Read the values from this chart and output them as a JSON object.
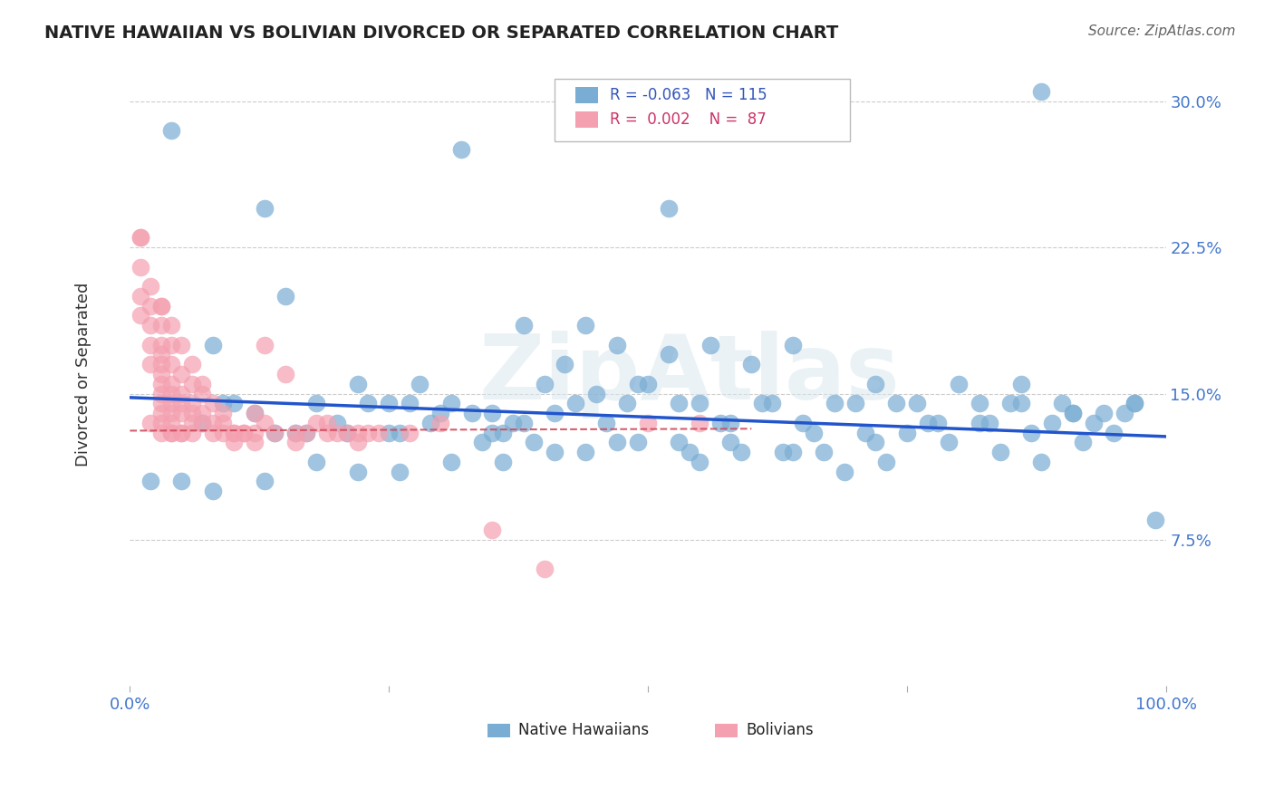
{
  "title": "NATIVE HAWAIIAN VS BOLIVIAN DIVORCED OR SEPARATED CORRELATION CHART",
  "source": "Source: ZipAtlas.com",
  "ylabel": "Divorced or Separated",
  "watermark": "ZipAtlas",
  "xlim": [
    0.0,
    1.0
  ],
  "ylim": [
    0.0,
    0.32
  ],
  "ytick_labels": [
    "7.5%",
    "15.0%",
    "22.5%",
    "30.0%"
  ],
  "ytick_vals": [
    0.075,
    0.15,
    0.225,
    0.3
  ],
  "gridline_color": "#cccccc",
  "blue_color": "#7aadd4",
  "pink_color": "#f4a0b0",
  "blue_line_color": "#2255cc",
  "pink_line_color": "#cc4455",
  "legend_R_blue": "-0.063",
  "legend_N_blue": "115",
  "legend_R_pink": "0.002",
  "legend_N_pink": "87",
  "legend_label_blue": "Native Hawaiians",
  "legend_label_pink": "Bolivians",
  "blue_scatter_x": [
    0.04,
    0.13,
    0.32,
    0.52,
    0.88,
    0.15,
    0.08,
    0.44,
    0.38,
    0.42,
    0.47,
    0.52,
    0.56,
    0.6,
    0.64,
    0.45,
    0.49,
    0.53,
    0.68,
    0.72,
    0.76,
    0.8,
    0.86,
    0.9,
    0.93,
    0.96,
    0.22,
    0.25,
    0.28,
    0.31,
    0.35,
    0.55,
    0.58,
    0.62,
    0.5,
    0.48,
    0.43,
    0.38,
    0.35,
    0.3,
    0.25,
    0.2,
    0.17,
    0.14,
    0.1,
    0.07,
    0.65,
    0.7,
    0.74,
    0.77,
    0.82,
    0.85,
    0.89,
    0.91,
    0.94,
    0.97,
    0.99,
    0.12,
    0.18,
    0.23,
    0.27,
    0.33,
    0.37,
    0.41,
    0.46,
    0.57,
    0.61,
    0.66,
    0.71,
    0.75,
    0.78,
    0.83,
    0.87,
    0.92,
    0.95,
    0.4,
    0.36,
    0.53,
    0.58,
    0.63,
    0.67,
    0.72,
    0.79,
    0.84,
    0.88,
    0.09,
    0.16,
    0.21,
    0.26,
    0.29,
    0.34,
    0.39,
    0.44,
    0.49,
    0.54,
    0.59,
    0.64,
    0.69,
    0.73,
    0.82,
    0.86,
    0.91,
    0.55,
    0.47,
    0.41,
    0.36,
    0.31,
    0.26,
    0.22,
    0.18,
    0.13,
    0.08,
    0.05,
    0.02,
    0.97
  ],
  "blue_scatter_y": [
    0.285,
    0.245,
    0.275,
    0.245,
    0.305,
    0.2,
    0.175,
    0.185,
    0.185,
    0.165,
    0.175,
    0.17,
    0.175,
    0.165,
    0.175,
    0.15,
    0.155,
    0.145,
    0.145,
    0.155,
    0.145,
    0.155,
    0.155,
    0.145,
    0.135,
    0.14,
    0.155,
    0.145,
    0.155,
    0.145,
    0.14,
    0.145,
    0.135,
    0.145,
    0.155,
    0.145,
    0.145,
    0.135,
    0.13,
    0.14,
    0.13,
    0.135,
    0.13,
    0.13,
    0.145,
    0.135,
    0.135,
    0.145,
    0.145,
    0.135,
    0.135,
    0.145,
    0.135,
    0.14,
    0.14,
    0.145,
    0.085,
    0.14,
    0.145,
    0.145,
    0.145,
    0.14,
    0.135,
    0.14,
    0.135,
    0.135,
    0.145,
    0.13,
    0.13,
    0.13,
    0.135,
    0.135,
    0.13,
    0.125,
    0.13,
    0.155,
    0.13,
    0.125,
    0.125,
    0.12,
    0.12,
    0.125,
    0.125,
    0.12,
    0.115,
    0.145,
    0.13,
    0.13,
    0.13,
    0.135,
    0.125,
    0.125,
    0.12,
    0.125,
    0.12,
    0.12,
    0.12,
    0.11,
    0.115,
    0.145,
    0.145,
    0.14,
    0.115,
    0.125,
    0.12,
    0.115,
    0.115,
    0.11,
    0.11,
    0.115,
    0.105,
    0.1,
    0.105,
    0.105,
    0.145
  ],
  "pink_scatter_x": [
    0.01,
    0.01,
    0.01,
    0.01,
    0.02,
    0.02,
    0.02,
    0.02,
    0.02,
    0.03,
    0.03,
    0.03,
    0.03,
    0.03,
    0.03,
    0.03,
    0.03,
    0.03,
    0.03,
    0.03,
    0.04,
    0.04,
    0.04,
    0.04,
    0.04,
    0.04,
    0.04,
    0.04,
    0.05,
    0.05,
    0.05,
    0.05,
    0.05,
    0.06,
    0.06,
    0.06,
    0.06,
    0.07,
    0.07,
    0.08,
    0.08,
    0.09,
    0.09,
    0.1,
    0.1,
    0.11,
    0.12,
    0.12,
    0.13,
    0.14,
    0.15,
    0.16,
    0.17,
    0.18,
    0.19,
    0.2,
    0.21,
    0.22,
    0.24,
    0.27,
    0.3,
    0.35,
    0.4,
    0.5,
    0.55,
    0.13,
    0.22,
    0.16,
    0.19,
    0.23,
    0.12,
    0.11,
    0.1,
    0.09,
    0.08,
    0.07,
    0.06,
    0.05,
    0.04,
    0.03,
    0.02,
    0.01,
    0.03,
    0.04,
    0.05,
    0.06,
    0.07
  ],
  "pink_scatter_y": [
    0.23,
    0.215,
    0.2,
    0.19,
    0.205,
    0.195,
    0.185,
    0.175,
    0.165,
    0.195,
    0.185,
    0.175,
    0.17,
    0.165,
    0.16,
    0.155,
    0.15,
    0.145,
    0.14,
    0.135,
    0.175,
    0.165,
    0.155,
    0.15,
    0.145,
    0.14,
    0.135,
    0.13,
    0.16,
    0.15,
    0.145,
    0.14,
    0.13,
    0.155,
    0.145,
    0.14,
    0.135,
    0.15,
    0.14,
    0.145,
    0.135,
    0.14,
    0.13,
    0.13,
    0.125,
    0.13,
    0.125,
    0.14,
    0.135,
    0.13,
    0.16,
    0.125,
    0.13,
    0.135,
    0.13,
    0.13,
    0.13,
    0.125,
    0.13,
    0.13,
    0.135,
    0.08,
    0.06,
    0.135,
    0.135,
    0.175,
    0.13,
    0.13,
    0.135,
    0.13,
    0.13,
    0.13,
    0.13,
    0.135,
    0.13,
    0.135,
    0.13,
    0.13,
    0.13,
    0.13,
    0.135,
    0.23,
    0.195,
    0.185,
    0.175,
    0.165,
    0.155
  ],
  "blue_trend_x": [
    0.0,
    1.0
  ],
  "blue_trend_y": [
    0.148,
    0.128
  ],
  "pink_trend_x": [
    0.0,
    0.6
  ],
  "pink_trend_y": [
    0.131,
    0.132
  ]
}
